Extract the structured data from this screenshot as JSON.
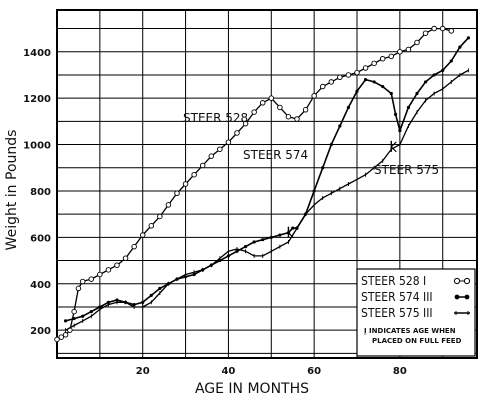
{
  "chart_data": {
    "type": "line",
    "title": "",
    "xlabel": "AGE IN MONTHS",
    "ylabel": "Weight in Pounds",
    "xlim": [
      0,
      98
    ],
    "ylim": [
      80,
      1580
    ],
    "x_ticks": [
      20,
      40,
      60,
      80
    ],
    "x_tick_labels": [
      "20",
      "40",
      "60",
      "80"
    ],
    "y_ticks": [
      200,
      400,
      600,
      800,
      1000,
      1200,
      1400
    ],
    "y_tick_labels": [
      "200",
      "400",
      "600",
      "800",
      "1000",
      "1200",
      "1400"
    ],
    "grid": true,
    "legend_position": "bottom-right",
    "series": [
      {
        "name": "STEER 528 I",
        "marker": "open-circle",
        "annotation": "STEER 528",
        "points": [
          [
            0,
            160
          ],
          [
            1,
            170
          ],
          [
            2,
            180
          ],
          [
            3,
            200
          ],
          [
            4,
            280
          ],
          [
            5,
            380
          ],
          [
            6,
            410
          ],
          [
            8,
            420
          ],
          [
            10,
            440
          ],
          [
            12,
            460
          ],
          [
            14,
            480
          ],
          [
            16,
            510
          ],
          [
            18,
            560
          ],
          [
            20,
            610
          ],
          [
            22,
            650
          ],
          [
            24,
            690
          ],
          [
            26,
            740
          ],
          [
            28,
            790
          ],
          [
            30,
            830
          ],
          [
            32,
            870
          ],
          [
            34,
            910
          ],
          [
            36,
            950
          ],
          [
            38,
            980
          ],
          [
            40,
            1010
          ],
          [
            42,
            1050
          ],
          [
            44,
            1090
          ],
          [
            46,
            1140
          ],
          [
            48,
            1180
          ],
          [
            50,
            1200
          ],
          [
            52,
            1160
          ],
          [
            54,
            1120
          ],
          [
            56,
            1110
          ],
          [
            58,
            1150
          ],
          [
            60,
            1210
          ],
          [
            62,
            1250
          ],
          [
            64,
            1270
          ],
          [
            66,
            1290
          ],
          [
            68,
            1300
          ],
          [
            70,
            1310
          ],
          [
            72,
            1330
          ],
          [
            74,
            1350
          ],
          [
            76,
            1370
          ],
          [
            78,
            1380
          ],
          [
            80,
            1400
          ],
          [
            82,
            1410
          ],
          [
            84,
            1440
          ],
          [
            86,
            1480
          ],
          [
            88,
            1500
          ],
          [
            90,
            1500
          ],
          [
            92,
            1490
          ]
        ]
      },
      {
        "name": "STEER 574 III",
        "marker": "filled-dot",
        "annotation": "STEER 574",
        "points": [
          [
            2,
            240
          ],
          [
            4,
            250
          ],
          [
            6,
            260
          ],
          [
            8,
            280
          ],
          [
            10,
            300
          ],
          [
            12,
            320
          ],
          [
            14,
            330
          ],
          [
            16,
            320
          ],
          [
            18,
            310
          ],
          [
            20,
            320
          ],
          [
            22,
            350
          ],
          [
            24,
            380
          ],
          [
            26,
            400
          ],
          [
            28,
            420
          ],
          [
            30,
            430
          ],
          [
            32,
            440
          ],
          [
            34,
            460
          ],
          [
            36,
            480
          ],
          [
            38,
            500
          ],
          [
            40,
            520
          ],
          [
            42,
            540
          ],
          [
            44,
            560
          ],
          [
            46,
            580
          ],
          [
            48,
            590
          ],
          [
            50,
            600
          ],
          [
            52,
            610
          ],
          [
            54,
            620
          ],
          [
            55,
            640
          ],
          [
            56,
            640
          ],
          [
            58,
            700
          ],
          [
            60,
            800
          ],
          [
            62,
            900
          ],
          [
            64,
            1000
          ],
          [
            66,
            1080
          ],
          [
            68,
            1160
          ],
          [
            70,
            1230
          ],
          [
            72,
            1280
          ],
          [
            74,
            1270
          ],
          [
            76,
            1250
          ],
          [
            78,
            1220
          ],
          [
            79,
            1130
          ],
          [
            80,
            1060
          ],
          [
            82,
            1160
          ],
          [
            84,
            1220
          ],
          [
            86,
            1270
          ],
          [
            88,
            1300
          ],
          [
            90,
            1320
          ],
          [
            92,
            1360
          ],
          [
            94,
            1420
          ],
          [
            96,
            1460
          ]
        ]
      },
      {
        "name": "STEER 575 III",
        "marker": "dash",
        "annotation": "STEER 575",
        "points": [
          [
            2,
            200
          ],
          [
            4,
            220
          ],
          [
            6,
            240
          ],
          [
            8,
            260
          ],
          [
            10,
            290
          ],
          [
            12,
            310
          ],
          [
            14,
            320
          ],
          [
            16,
            320
          ],
          [
            18,
            300
          ],
          [
            20,
            300
          ],
          [
            22,
            320
          ],
          [
            24,
            360
          ],
          [
            26,
            400
          ],
          [
            28,
            420
          ],
          [
            30,
            440
          ],
          [
            32,
            450
          ],
          [
            34,
            460
          ],
          [
            36,
            480
          ],
          [
            38,
            510
          ],
          [
            40,
            540
          ],
          [
            42,
            550
          ],
          [
            44,
            540
          ],
          [
            46,
            520
          ],
          [
            48,
            520
          ],
          [
            50,
            540
          ],
          [
            52,
            560
          ],
          [
            54,
            580
          ],
          [
            56,
            640
          ],
          [
            58,
            700
          ],
          [
            60,
            740
          ],
          [
            62,
            770
          ],
          [
            64,
            790
          ],
          [
            66,
            810
          ],
          [
            68,
            830
          ],
          [
            70,
            850
          ],
          [
            72,
            870
          ],
          [
            74,
            900
          ],
          [
            76,
            930
          ],
          [
            78,
            980
          ],
          [
            80,
            1000
          ],
          [
            82,
            1080
          ],
          [
            84,
            1140
          ],
          [
            86,
            1190
          ],
          [
            88,
            1220
          ],
          [
            90,
            1240
          ],
          [
            92,
            1270
          ],
          [
            94,
            1300
          ],
          [
            96,
            1320
          ]
        ]
      }
    ],
    "markers_full_feed": [
      [
        54,
        620
      ],
      [
        78,
        990
      ]
    ],
    "legend_note": "Ḭ INDICATES AGE WHEN PLACED ON FULL FEED"
  }
}
